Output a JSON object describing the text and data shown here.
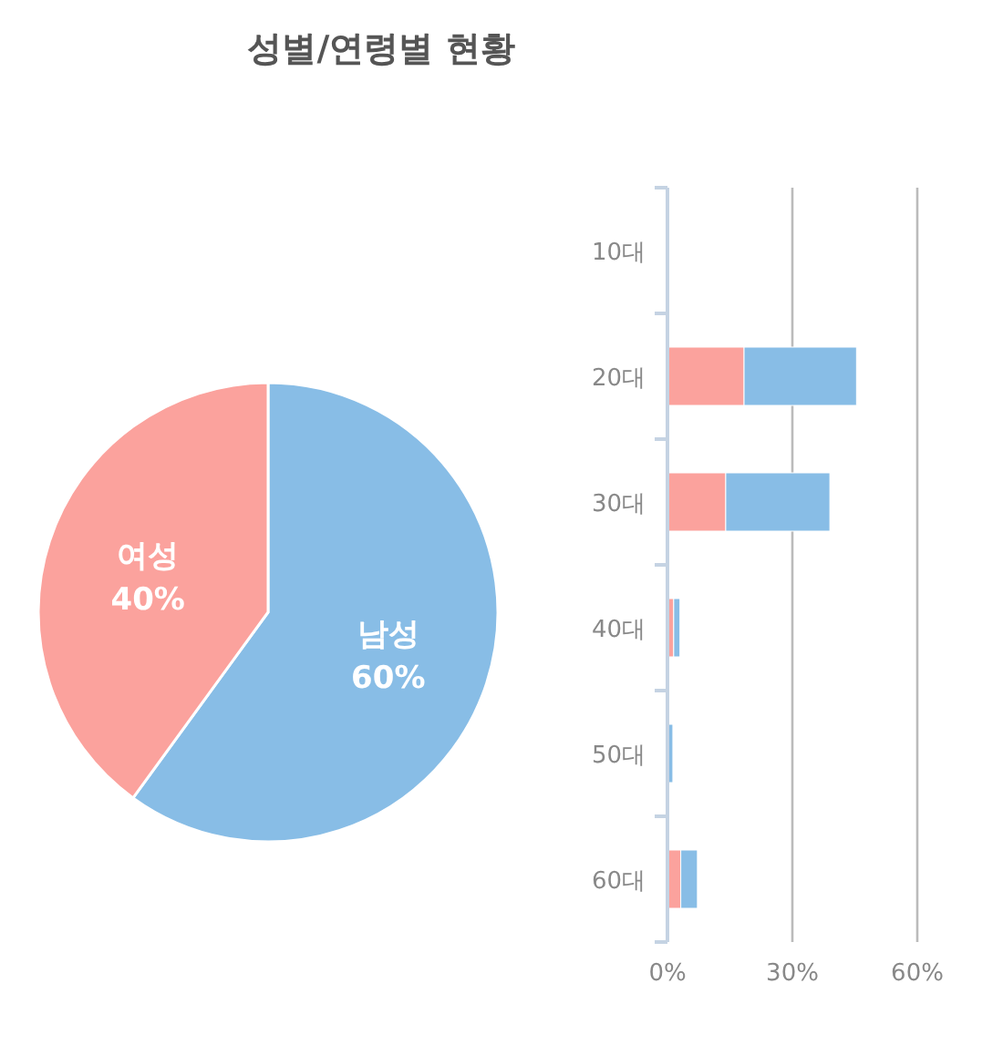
{
  "chart_data": [
    {
      "type": "pie",
      "title": "성별/연령별 현황",
      "categories": [
        "남성",
        "여성"
      ],
      "values": [
        60,
        40
      ],
      "colors": [
        "#88bde6",
        "#fba29d"
      ],
      "value_labels": [
        "60%",
        "40%"
      ]
    },
    {
      "type": "bar",
      "orientation": "horizontal",
      "stacked": true,
      "categories": [
        "10대",
        "20대",
        "30대",
        "40대",
        "50대",
        "60대"
      ],
      "xlim": [
        0,
        60
      ],
      "xticks": [
        {
          "value": 0,
          "label": "0%"
        },
        {
          "value": 30,
          "label": "30%"
        },
        {
          "value": 60,
          "label": "60%"
        }
      ],
      "grid": "x",
      "series": [
        {
          "color": "#fba29d",
          "values": [
            0,
            18.4,
            14,
            1.5,
            0,
            3.2
          ]
        },
        {
          "color": "#88bde6",
          "values": [
            0,
            27,
            25,
            1.5,
            1.3,
            4
          ]
        }
      ]
    }
  ]
}
